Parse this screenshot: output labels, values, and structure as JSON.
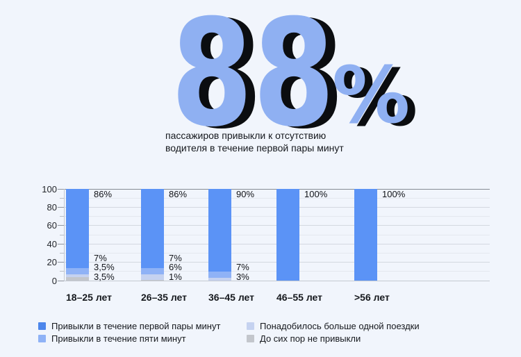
{
  "background": "#f1f5fc",
  "hero": {
    "number": "88",
    "percent_sign": "%",
    "number_color": "#8fb0f2",
    "shadow_color": "#0b0d10",
    "subtitle_line1": "пассажиров привыкли к отсутствию",
    "subtitle_line2": "водителя в течение первой пары минут"
  },
  "chart_data": {
    "type": "bar",
    "stacked": true,
    "title": "",
    "xlabel": "",
    "ylabel": "",
    "categories": [
      "18–25 лет",
      "26–35 лет",
      "36–45 лет",
      "46–55 лет",
      ">56 лет"
    ],
    "series": [
      {
        "name": "Привыкли в течение первой пары минут",
        "color": "#5b93f6",
        "values": [
          86,
          86,
          90,
          100,
          100
        ]
      },
      {
        "name": "Привыкли в течение пяти минут",
        "color": "#8fb2f6",
        "values": [
          7,
          7,
          7,
          0,
          0
        ]
      },
      {
        "name": "Понадобилось больше одной поездки",
        "color": "#c5d2f0",
        "values": [
          3.5,
          6,
          3,
          0,
          0
        ]
      },
      {
        "name": "До сих пор не привыкли",
        "color": "#c3c6cc",
        "values": [
          3.5,
          1,
          0,
          0,
          0
        ]
      }
    ],
    "top_labels": [
      "86%",
      "86%",
      "90%",
      "100%",
      "100%"
    ],
    "segment_labels": [
      [
        "7%",
        "3,5%",
        "3,5%"
      ],
      [
        "7%",
        "6%",
        "1%"
      ],
      [
        "7%",
        "3%"
      ],
      [],
      []
    ],
    "y_ticks": [
      0,
      20,
      40,
      60,
      80,
      100
    ],
    "ylim": [
      0,
      100
    ],
    "grid_step": 10,
    "grid_on": true,
    "legend_position": "bottom"
  },
  "legend": {
    "items": [
      {
        "label": "Привыкли в течение первой пары минут",
        "color": "#4d86eb"
      },
      {
        "label": "Привыкли в течение пяти минут",
        "color": "#8fb2f6"
      },
      {
        "label": "Понадобилось больше одной поездки",
        "color": "#c5d2f0"
      },
      {
        "label": "До сих пор не привыкли",
        "color": "#c3c6cc"
      }
    ]
  }
}
